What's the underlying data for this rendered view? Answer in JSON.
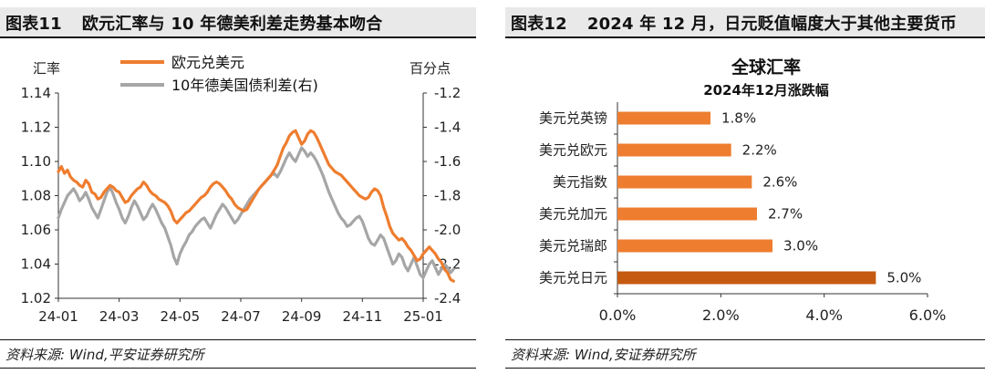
{
  "left": {
    "title_num": "图表11",
    "title_text": "欧元汇率与 10 年德美利差走势基本吻合",
    "source": "资料来源: Wind,平安证券研究所"
  },
  "right": {
    "title_num": "图表12",
    "title_text": "2024 年 12 月，日元贬值幅度大于其他主要货币",
    "source": "资料来源: Wind,安证券研究所"
  },
  "colors": {
    "eur": "#ee7d2f",
    "spread": "#a6a6a6",
    "bar": "#ee7d2f",
    "bar_highlight": "#c55a11"
  },
  "chart_data": [
    {
      "type": "line",
      "left_axis_label": "汇率",
      "right_axis_label": "百分点",
      "x_ticks": [
        "24-01",
        "24-03",
        "24-05",
        "24-07",
        "24-09",
        "24-11",
        "25-01"
      ],
      "ylim_left": [
        1.02,
        1.14
      ],
      "yticks_left": [
        "1.02",
        "1.04",
        "1.06",
        "1.08",
        "1.10",
        "1.12",
        "1.14"
      ],
      "ylim_right": [
        -2.4,
        -1.2
      ],
      "yticks_right": [
        "-2.4",
        "-2.2",
        "-2.0",
        "-1.8",
        "-1.6",
        "-1.4",
        "-1.2"
      ],
      "series": [
        {
          "name": "欧元兑美元",
          "axis": "left",
          "color": "#ee7d2f",
          "x": [
            0,
            0.1,
            0.2,
            0.3,
            0.4,
            0.5,
            0.6,
            0.7,
            0.8,
            0.9,
            1.0,
            1.1,
            1.2,
            1.3,
            1.4,
            1.5,
            1.6,
            1.7,
            1.8,
            1.9,
            2.0,
            2.1,
            2.2,
            2.3,
            2.4,
            2.5,
            2.6,
            2.7,
            2.8,
            2.9,
            3.0,
            3.1,
            3.2,
            3.3,
            3.4,
            3.5,
            3.6,
            3.7,
            3.8,
            3.9,
            4.0,
            4.1,
            4.2,
            4.3,
            4.4,
            4.5,
            4.6,
            4.7,
            4.8,
            4.9,
            5.0,
            5.1,
            5.2,
            5.3,
            5.4,
            5.5,
            5.6,
            5.7,
            5.8,
            5.9,
            6.0,
            6.1,
            6.2,
            6.3,
            6.4,
            6.5,
            6.6,
            6.7,
            6.8,
            6.9,
            7.0,
            7.1,
            7.2,
            7.3,
            7.4,
            7.5,
            7.6,
            7.7,
            7.8,
            7.9,
            8.0,
            8.1,
            8.2,
            8.3,
            8.4,
            8.5,
            8.6,
            8.7,
            8.8,
            8.9,
            9.0,
            9.1,
            9.2,
            9.3,
            9.4,
            9.5,
            9.6,
            9.7,
            9.8,
            9.9,
            10.0,
            10.1,
            10.2,
            10.3,
            10.4,
            10.5,
            10.6,
            10.7,
            10.8,
            10.9,
            11.0,
            11.1,
            11.2,
            11.3,
            11.4,
            11.5,
            11.6,
            11.7,
            11.8,
            11.9,
            12.0,
            12.1,
            12.2,
            12.3,
            12.4,
            12.5,
            12.6,
            12.7,
            12.8,
            12.9,
            13.0
          ],
          "values": [
            1.094,
            1.097,
            1.093,
            1.095,
            1.091,
            1.089,
            1.088,
            1.086,
            1.085,
            1.089,
            1.087,
            1.082,
            1.081,
            1.078,
            1.079,
            1.082,
            1.084,
            1.086,
            1.085,
            1.083,
            1.082,
            1.079,
            1.076,
            1.077,
            1.08,
            1.082,
            1.084,
            1.085,
            1.088,
            1.086,
            1.083,
            1.081,
            1.08,
            1.078,
            1.077,
            1.076,
            1.074,
            1.071,
            1.066,
            1.064,
            1.066,
            1.068,
            1.07,
            1.071,
            1.073,
            1.075,
            1.077,
            1.079,
            1.08,
            1.082,
            1.085,
            1.087,
            1.088,
            1.087,
            1.085,
            1.083,
            1.08,
            1.078,
            1.075,
            1.073,
            1.072,
            1.071,
            1.072,
            1.075,
            1.078,
            1.081,
            1.084,
            1.086,
            1.088,
            1.09,
            1.092,
            1.095,
            1.098,
            1.103,
            1.108,
            1.111,
            1.115,
            1.117,
            1.118,
            1.114,
            1.11,
            1.112,
            1.116,
            1.118,
            1.117,
            1.114,
            1.11,
            1.106,
            1.102,
            1.098,
            1.096,
            1.094,
            1.093,
            1.092,
            1.09,
            1.088,
            1.086,
            1.084,
            1.082,
            1.08,
            1.079,
            1.078,
            1.079,
            1.082,
            1.084,
            1.083,
            1.08,
            1.073,
            1.068,
            1.062,
            1.058,
            1.056,
            1.054,
            1.055,
            1.053,
            1.05,
            1.048,
            1.045,
            1.042,
            1.043,
            1.046,
            1.048,
            1.05,
            1.048,
            1.046,
            1.043,
            1.041,
            1.037,
            1.035,
            1.031,
            1.03
          ]
        },
        {
          "name": "10年德美国债利差(右)",
          "axis": "right",
          "color": "#a6a6a6",
          "x": [
            0,
            0.1,
            0.2,
            0.3,
            0.4,
            0.5,
            0.6,
            0.7,
            0.8,
            0.9,
            1.0,
            1.1,
            1.2,
            1.3,
            1.4,
            1.5,
            1.6,
            1.7,
            1.8,
            1.9,
            2.0,
            2.1,
            2.2,
            2.3,
            2.4,
            2.5,
            2.6,
            2.7,
            2.8,
            2.9,
            3.0,
            3.1,
            3.2,
            3.3,
            3.4,
            3.5,
            3.6,
            3.7,
            3.8,
            3.9,
            4.0,
            4.1,
            4.2,
            4.3,
            4.4,
            4.5,
            4.6,
            4.7,
            4.8,
            4.9,
            5.0,
            5.1,
            5.2,
            5.3,
            5.4,
            5.5,
            5.6,
            5.7,
            5.8,
            5.9,
            6.0,
            6.1,
            6.2,
            6.3,
            6.4,
            6.5,
            6.6,
            6.7,
            6.8,
            6.9,
            7.0,
            7.1,
            7.2,
            7.3,
            7.4,
            7.5,
            7.6,
            7.7,
            7.8,
            7.9,
            8.0,
            8.1,
            8.2,
            8.3,
            8.4,
            8.5,
            8.6,
            8.7,
            8.8,
            8.9,
            9.0,
            9.1,
            9.2,
            9.3,
            9.4,
            9.5,
            9.6,
            9.7,
            9.8,
            9.9,
            10.0,
            10.1,
            10.2,
            10.3,
            10.4,
            10.5,
            10.6,
            10.7,
            10.8,
            10.9,
            11.0,
            11.1,
            11.2,
            11.3,
            11.4,
            11.5,
            11.6,
            11.7,
            11.8,
            11.9,
            12.0,
            12.1,
            12.2,
            12.3,
            12.4,
            12.5,
            12.6,
            12.7,
            12.8,
            12.9,
            13.0
          ],
          "values": [
            -1.93,
            -1.88,
            -1.84,
            -1.8,
            -1.78,
            -1.76,
            -1.79,
            -1.83,
            -1.81,
            -1.78,
            -1.82,
            -1.87,
            -1.9,
            -1.93,
            -1.88,
            -1.83,
            -1.78,
            -1.75,
            -1.79,
            -1.84,
            -1.88,
            -1.93,
            -1.96,
            -1.92,
            -1.87,
            -1.83,
            -1.86,
            -1.9,
            -1.94,
            -1.92,
            -1.88,
            -1.85,
            -1.88,
            -1.92,
            -1.96,
            -1.99,
            -2.04,
            -2.09,
            -2.16,
            -2.2,
            -2.14,
            -2.1,
            -2.07,
            -2.03,
            -2.01,
            -1.98,
            -1.96,
            -1.94,
            -1.93,
            -1.96,
            -1.99,
            -1.95,
            -1.91,
            -1.88,
            -1.85,
            -1.87,
            -1.9,
            -1.93,
            -1.96,
            -1.94,
            -1.91,
            -1.88,
            -1.85,
            -1.82,
            -1.8,
            -1.78,
            -1.76,
            -1.74,
            -1.72,
            -1.7,
            -1.68,
            -1.67,
            -1.69,
            -1.66,
            -1.62,
            -1.58,
            -1.55,
            -1.58,
            -1.6,
            -1.56,
            -1.52,
            -1.54,
            -1.57,
            -1.55,
            -1.57,
            -1.6,
            -1.64,
            -1.68,
            -1.73,
            -1.78,
            -1.82,
            -1.86,
            -1.9,
            -1.93,
            -1.95,
            -1.98,
            -1.97,
            -1.95,
            -1.93,
            -1.92,
            -1.95,
            -2.0,
            -2.05,
            -2.08,
            -2.09,
            -2.06,
            -2.03,
            -2.05,
            -2.1,
            -2.15,
            -2.2,
            -2.18,
            -2.14,
            -2.16,
            -2.21,
            -2.24,
            -2.2,
            -2.16,
            -2.21,
            -2.26,
            -2.28,
            -2.24,
            -2.2,
            -2.18,
            -2.22,
            -2.26,
            -2.23,
            -2.2,
            -2.22,
            -2.25,
            -2.23
          ]
        }
      ]
    },
    {
      "type": "bar",
      "orientation": "horizontal",
      "title": "全球汇率",
      "subtitle": "2024年12月涨跌幅",
      "categories": [
        "美元兑英镑",
        "美元兑欧元",
        "美元指数",
        "美元兑加元",
        "美元兑瑞郎",
        "美元兑日元"
      ],
      "values": [
        1.8,
        2.2,
        2.6,
        2.7,
        3.0,
        5.0
      ],
      "value_labels": [
        "1.8%",
        "2.2%",
        "2.6%",
        "2.7%",
        "3.0%",
        "5.0%"
      ],
      "xlim": [
        0,
        6
      ],
      "x_ticks": [
        "0.0%",
        "2.0%",
        "4.0%",
        "6.0%"
      ],
      "highlight_category": "美元兑日元"
    }
  ]
}
